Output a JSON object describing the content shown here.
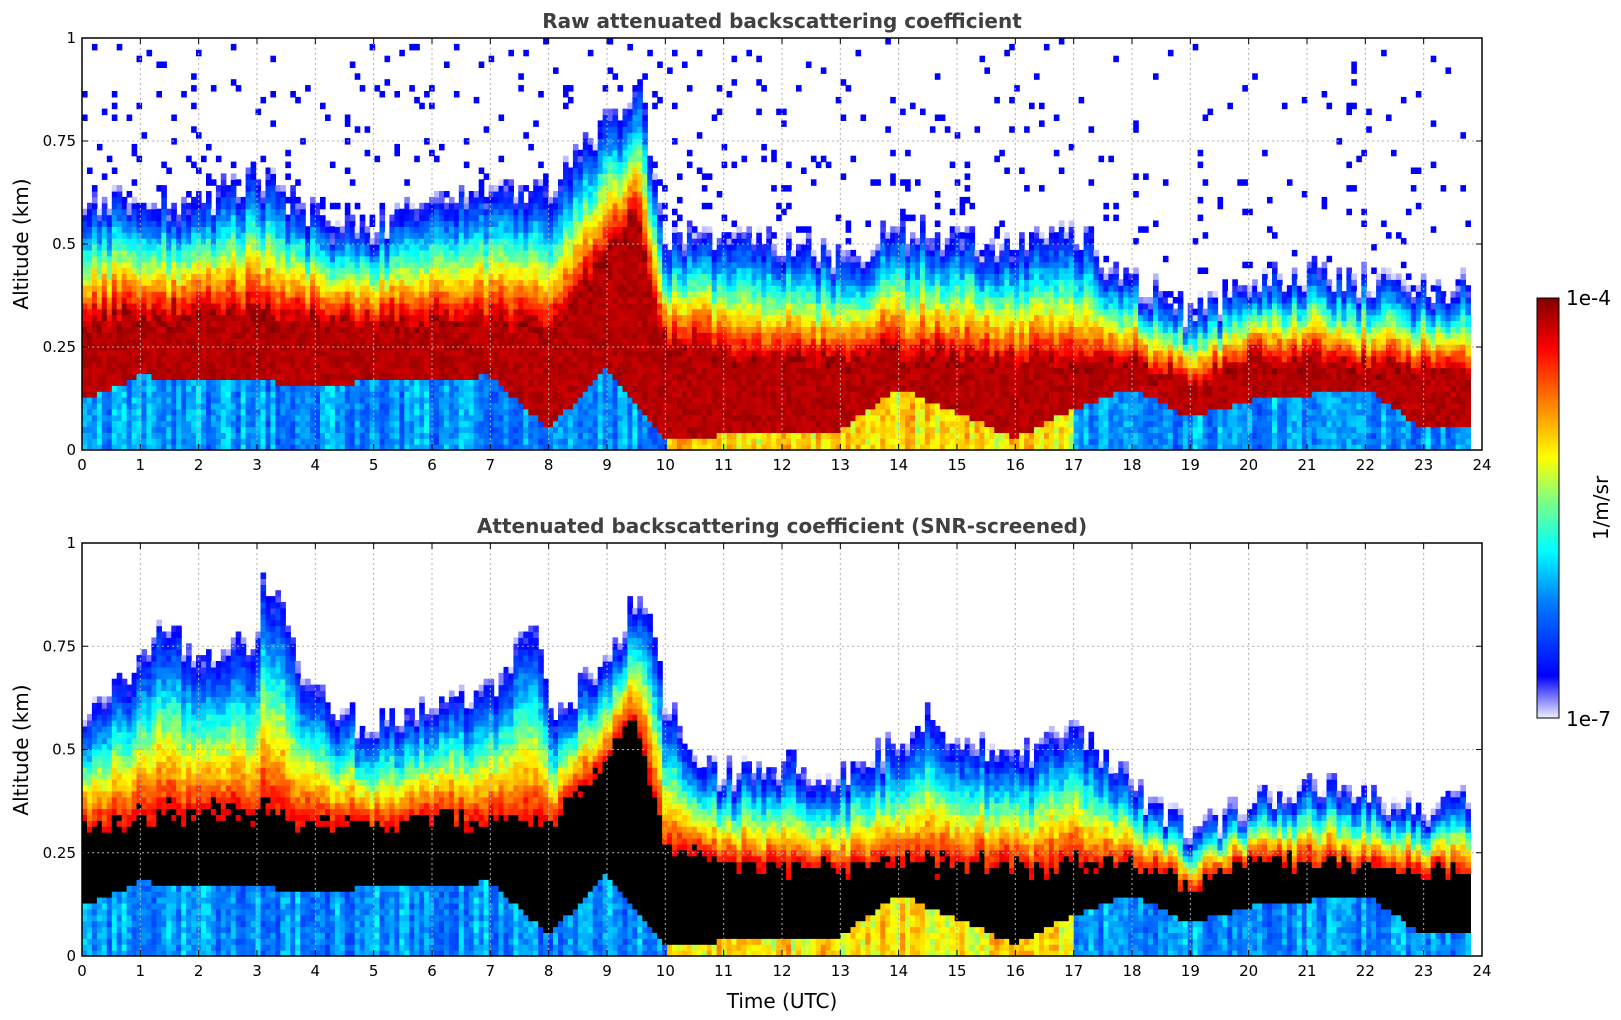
{
  "chart_data": [
    {
      "type": "heatmap",
      "title": "Raw attenuated backscattering coefficient",
      "xlabel": "",
      "ylabel": "Altitude (km)",
      "xlim": [
        0,
        24
      ],
      "ylim": [
        0,
        1
      ],
      "xticks": [
        "0",
        "1",
        "2",
        "3",
        "4",
        "5",
        "6",
        "7",
        "8",
        "9",
        "10",
        "11",
        "12",
        "13",
        "14",
        "15",
        "16",
        "17",
        "18",
        "19",
        "20",
        "21",
        "22",
        "23",
        "24"
      ],
      "yticks": [
        "0",
        "0.25",
        "0.5",
        "0.75",
        "1"
      ],
      "grid": true,
      "colormap": "jet",
      "data_end_time": 23.8,
      "layer_top_km": [
        [
          0,
          0.55
        ],
        [
          1,
          0.62
        ],
        [
          2,
          0.58
        ],
        [
          3,
          0.65
        ],
        [
          4,
          0.55
        ],
        [
          5,
          0.52
        ],
        [
          6,
          0.58
        ],
        [
          7,
          0.6
        ],
        [
          8,
          0.62
        ],
        [
          9,
          0.78
        ],
        [
          9.6,
          0.85
        ],
        [
          10,
          0.5
        ],
        [
          11,
          0.5
        ],
        [
          12,
          0.48
        ],
        [
          13,
          0.45
        ],
        [
          14,
          0.52
        ],
        [
          15,
          0.5
        ],
        [
          16,
          0.48
        ],
        [
          17,
          0.52
        ],
        [
          18,
          0.4
        ],
        [
          19,
          0.32
        ],
        [
          20,
          0.38
        ],
        [
          21,
          0.42
        ],
        [
          22,
          0.4
        ],
        [
          23,
          0.38
        ],
        [
          23.8,
          0.38
        ]
      ],
      "layer_center_km": [
        [
          0,
          0.3
        ],
        [
          2,
          0.32
        ],
        [
          4,
          0.3
        ],
        [
          6,
          0.3
        ],
        [
          8,
          0.28
        ],
        [
          9.5,
          0.55
        ],
        [
          10,
          0.25
        ],
        [
          12,
          0.2
        ],
        [
          14,
          0.22
        ],
        [
          16,
          0.2
        ],
        [
          18,
          0.2
        ],
        [
          19,
          0.15
        ],
        [
          20,
          0.22
        ],
        [
          22,
          0.2
        ],
        [
          23.8,
          0.18
        ]
      ],
      "layer_bottom_km": [
        [
          0,
          0.12
        ],
        [
          1,
          0.18
        ],
        [
          4,
          0.16
        ],
        [
          7,
          0.18
        ],
        [
          8,
          0.05
        ],
        [
          9,
          0.2
        ],
        [
          10,
          0.03
        ],
        [
          13,
          0.05
        ],
        [
          14,
          0.15
        ],
        [
          16,
          0.03
        ],
        [
          17,
          0.1
        ],
        [
          18,
          0.15
        ],
        [
          19,
          0.08
        ],
        [
          20,
          0.12
        ],
        [
          22,
          0.15
        ],
        [
          23,
          0.05
        ],
        [
          23.8,
          0.05
        ]
      ]
    },
    {
      "type": "heatmap",
      "title": "Attenuated backscattering coefficient (SNR-screened)",
      "xlabel": "Time (UTC)",
      "ylabel": "Altitude (km)",
      "xlim": [
        0,
        24
      ],
      "ylim": [
        0,
        1
      ],
      "xticks": [
        "0",
        "1",
        "2",
        "3",
        "4",
        "5",
        "6",
        "7",
        "8",
        "9",
        "10",
        "11",
        "12",
        "13",
        "14",
        "15",
        "16",
        "17",
        "18",
        "19",
        "20",
        "21",
        "22",
        "23",
        "24"
      ],
      "yticks": [
        "0",
        "0.25",
        "0.5",
        "0.75",
        "1"
      ],
      "grid": true,
      "colormap": "jet",
      "saturated_color": "#000000",
      "data_end_time": 23.8,
      "layer_top_km": [
        [
          0,
          0.55
        ],
        [
          1,
          0.68
        ],
        [
          1.3,
          0.8
        ],
        [
          2,
          0.7
        ],
        [
          3,
          0.75
        ],
        [
          3.1,
          0.92
        ],
        [
          4,
          0.6
        ],
        [
          5,
          0.55
        ],
        [
          6,
          0.6
        ],
        [
          7,
          0.62
        ],
        [
          7.8,
          0.82
        ],
        [
          8,
          0.55
        ],
        [
          9,
          0.7
        ],
        [
          9.6,
          0.88
        ],
        [
          10,
          0.6
        ],
        [
          10.5,
          0.45
        ],
        [
          11,
          0.42
        ],
        [
          12,
          0.45
        ],
        [
          13,
          0.43
        ],
        [
          14,
          0.5
        ],
        [
          14.5,
          0.55
        ],
        [
          15,
          0.5
        ],
        [
          16,
          0.47
        ],
        [
          17,
          0.55
        ],
        [
          18,
          0.4
        ],
        [
          19,
          0.3
        ],
        [
          20,
          0.35
        ],
        [
          21,
          0.4
        ],
        [
          22,
          0.38
        ],
        [
          23,
          0.35
        ],
        [
          23.8,
          0.36
        ]
      ],
      "layer_center_km": [
        [
          0,
          0.28
        ],
        [
          2,
          0.3
        ],
        [
          4,
          0.28
        ],
        [
          6,
          0.3
        ],
        [
          8,
          0.28
        ],
        [
          9.5,
          0.55
        ],
        [
          10,
          0.22
        ],
        [
          12,
          0.18
        ],
        [
          14,
          0.2
        ],
        [
          16,
          0.18
        ],
        [
          18,
          0.2
        ],
        [
          19,
          0.15
        ],
        [
          20,
          0.22
        ],
        [
          22,
          0.2
        ],
        [
          23.8,
          0.18
        ]
      ],
      "layer_bottom_km": [
        [
          0,
          0.12
        ],
        [
          1,
          0.18
        ],
        [
          4,
          0.16
        ],
        [
          7,
          0.18
        ],
        [
          8,
          0.05
        ],
        [
          9,
          0.2
        ],
        [
          10,
          0.03
        ],
        [
          13,
          0.05
        ],
        [
          14,
          0.15
        ],
        [
          16,
          0.03
        ],
        [
          17,
          0.1
        ],
        [
          18,
          0.15
        ],
        [
          19,
          0.08
        ],
        [
          20,
          0.12
        ],
        [
          22,
          0.15
        ],
        [
          23,
          0.05
        ],
        [
          23.8,
          0.05
        ]
      ]
    }
  ],
  "colorbar": {
    "label": "1/m/sr",
    "max_label": "1e-4",
    "min_label": "1e-7",
    "scale": "log",
    "range": [
      1e-07,
      0.0001
    ]
  }
}
